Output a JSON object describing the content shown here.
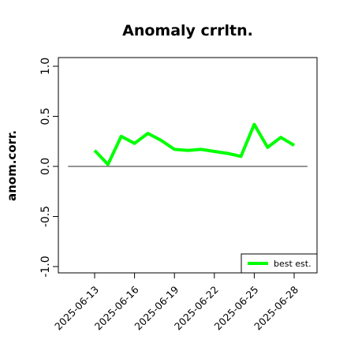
{
  "chart_data": {
    "type": "line",
    "title": "Anomaly crrltn.",
    "xlabel": "",
    "ylabel": "anom.corr.",
    "ylim": [
      -1.0,
      1.0
    ],
    "yticks": [
      "-1.0",
      "-0.5",
      "0.0",
      "0.5",
      "1.0"
    ],
    "ytick_values": [
      -1.0,
      -0.5,
      0.0,
      0.5,
      1.0
    ],
    "xlim": [
      "2025-06-11",
      "2025-06-29"
    ],
    "xticks": [
      "2025-06-13",
      "2025-06-16",
      "2025-06-19",
      "2025-06-22",
      "2025-06-25",
      "2025-06-28"
    ],
    "highlighted_xtick": "2025-06-19",
    "highlight_color": "#228B22",
    "reference_line": 0.0,
    "series": [
      {
        "name": "best est.",
        "color": "#00ff00",
        "x": [
          "2025-06-13",
          "2025-06-14",
          "2025-06-15",
          "2025-06-16",
          "2025-06-17",
          "2025-06-18",
          "2025-06-19",
          "2025-06-20",
          "2025-06-21",
          "2025-06-22",
          "2025-06-23",
          "2025-06-24",
          "2025-06-25",
          "2025-06-26",
          "2025-06-27",
          "2025-06-28"
        ],
        "values": [
          0.16,
          0.02,
          0.3,
          0.23,
          0.33,
          0.26,
          0.17,
          0.16,
          0.17,
          0.15,
          0.13,
          0.1,
          0.42,
          0.19,
          0.29,
          0.21
        ]
      }
    ],
    "grid": false,
    "legend_position": "bottom-right"
  }
}
